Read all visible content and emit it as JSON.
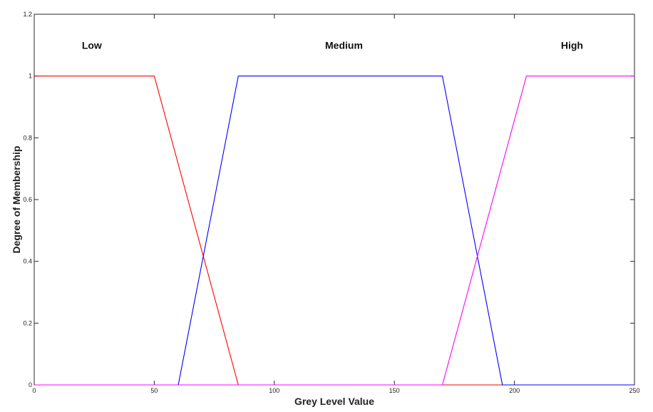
{
  "chart_data": {
    "type": "line",
    "xlabel": "Grey Level Value",
    "ylabel": "Degree of Membership",
    "xlim": [
      0,
      250
    ],
    "ylim": [
      0,
      1.2
    ],
    "xticks": [
      0,
      50,
      100,
      150,
      200,
      250
    ],
    "yticks": [
      0,
      0.2,
      0.4,
      0.6,
      0.8,
      1,
      1.2
    ],
    "xtick_labels": [
      "0",
      "50",
      "100",
      "150",
      "200",
      "250"
    ],
    "ytick_labels": [
      "0",
      "0.2",
      "0.4",
      "0.6",
      "0.8",
      "1",
      "1.2"
    ],
    "grid": false,
    "series": [
      {
        "color": "#ff0000",
        "x": [
          0,
          50,
          85,
          250
        ],
        "y": [
          1,
          1,
          0,
          0
        ]
      },
      {
        "color": "#0000ff",
        "x": [
          0,
          60,
          85,
          170,
          195,
          250
        ],
        "y": [
          0,
          0,
          1,
          1,
          0,
          0
        ]
      },
      {
        "color": "#ff00ff",
        "x": [
          0,
          170,
          205,
          250
        ],
        "y": [
          0,
          0,
          1,
          1
        ]
      }
    ],
    "annotations": [
      {
        "text": "Low",
        "x": 24,
        "y": 1.1
      },
      {
        "text": "Medium",
        "x": 129,
        "y": 1.1
      },
      {
        "text": "High",
        "x": 224,
        "y": 1.1
      }
    ]
  }
}
